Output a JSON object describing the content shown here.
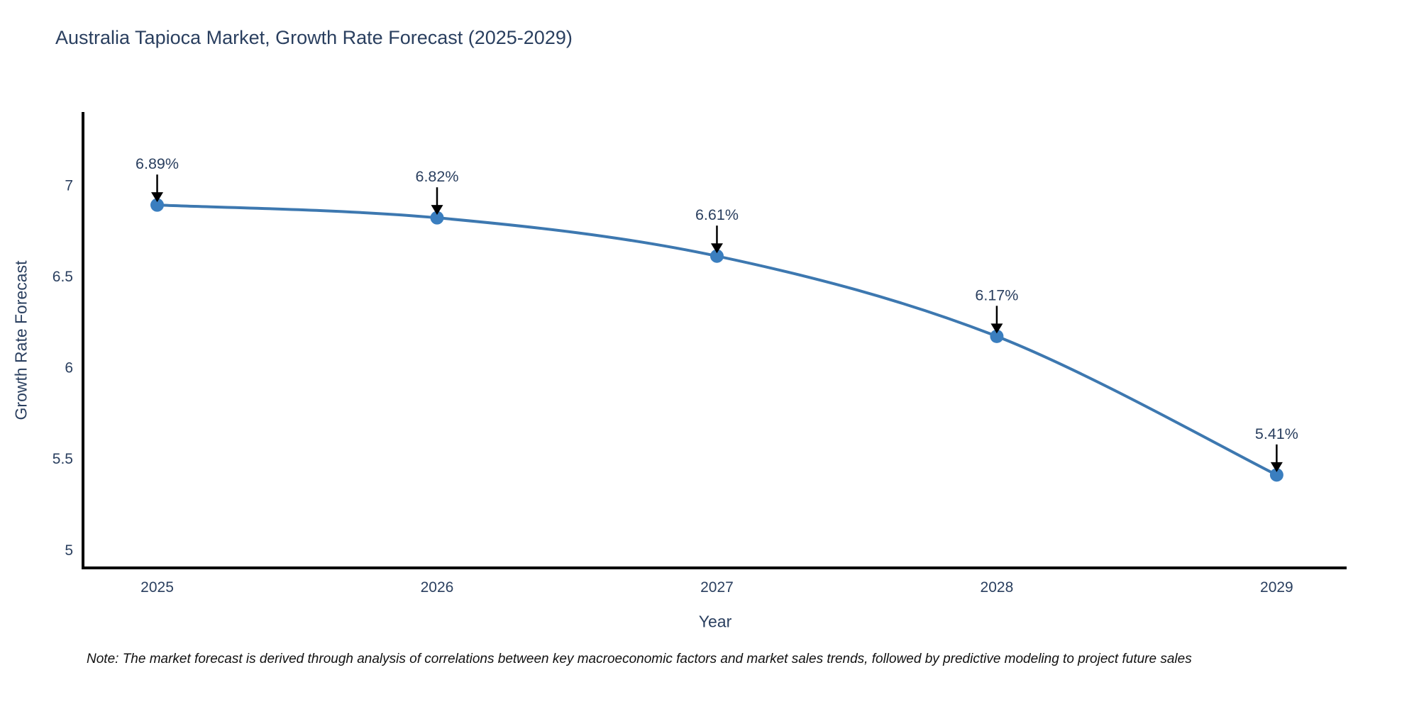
{
  "title": "Australia Tapioca Market, Growth Rate Forecast (2025-2029)",
  "note": "Note: The market forecast is derived through analysis of correlations between key macroeconomic factors and market sales trends, followed by predictive modeling to project future sales",
  "chart_data": {
    "type": "line",
    "line_shape": "spline",
    "title": "Australia Tapioca Market, Growth Rate Forecast (2025-2029)",
    "xlabel": "Year",
    "ylabel": "Growth Rate Forecast",
    "categories": [
      "2025",
      "2026",
      "2027",
      "2028",
      "2029"
    ],
    "series": [
      {
        "name": "Growth Rate Forecast",
        "values": [
          6.89,
          6.82,
          6.61,
          6.17,
          5.41
        ],
        "point_labels": [
          "6.89%",
          "6.82%",
          "6.61%",
          "6.17%",
          "5.41%"
        ]
      }
    ],
    "yticks": [
      5,
      5.5,
      6,
      6.5,
      7
    ],
    "ylim": [
      4.9,
      7.4
    ],
    "xlim_padding": [
      0.265,
      0.25
    ],
    "grid": false,
    "legend": false,
    "annotations": "value labels with black down-arrows above each point",
    "colors": {
      "line": "#3d78b0",
      "marker": "#3a7ebf",
      "axis": "#000000",
      "tick_text": "#2a3f5f",
      "annotation_text": "#2a3f5f",
      "arrow": "#000000"
    }
  }
}
